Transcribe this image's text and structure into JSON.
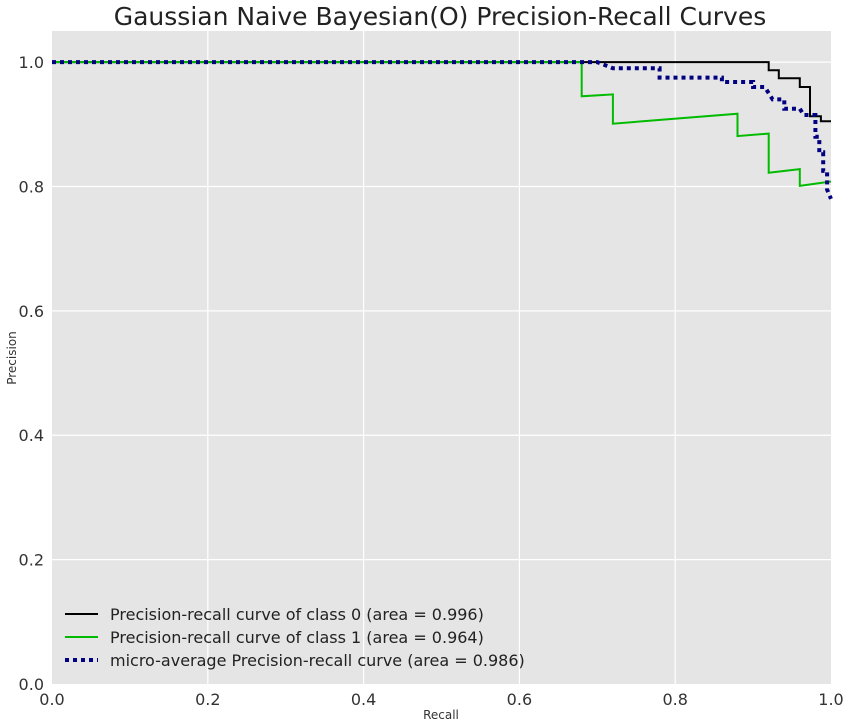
{
  "chart_data": {
    "type": "line",
    "title": "Gaussian Naive Bayesian(O) Precision-Recall Curves",
    "xlabel": "Recall",
    "ylabel": "Precision",
    "xlim": [
      0.0,
      1.0
    ],
    "ylim": [
      0.0,
      1.05
    ],
    "xticks": [
      "0.0",
      "0.2",
      "0.4",
      "0.6",
      "0.8",
      "1.0"
    ],
    "yticks": [
      "0.0",
      "0.2",
      "0.4",
      "0.6",
      "0.8",
      "1.0"
    ],
    "grid": true,
    "legend_position": "lower-left",
    "background_color": "#e5e5e5",
    "grid_color": "#ffffff",
    "series": [
      {
        "name": "Precision-recall curve of class 0 (area = 0.996)",
        "color": "#000000",
        "style": "solid",
        "points": [
          [
            0.0,
            1.0
          ],
          [
            0.92,
            1.0
          ],
          [
            0.92,
            0.987
          ],
          [
            0.933,
            0.987
          ],
          [
            0.933,
            0.974
          ],
          [
            0.96,
            0.974
          ],
          [
            0.96,
            0.96
          ],
          [
            0.973,
            0.96
          ],
          [
            0.973,
            0.913
          ],
          [
            0.987,
            0.913
          ],
          [
            0.987,
            0.905
          ],
          [
            1.0,
            0.905
          ]
        ]
      },
      {
        "name": "Precision-recall curve of class 1 (area = 0.964)",
        "color": "#00bb00",
        "style": "solid",
        "points": [
          [
            0.0,
            1.0
          ],
          [
            0.68,
            1.0
          ],
          [
            0.68,
            0.945
          ],
          [
            0.72,
            0.948
          ],
          [
            0.72,
            0.901
          ],
          [
            0.88,
            0.917
          ],
          [
            0.88,
            0.881
          ],
          [
            0.92,
            0.885
          ],
          [
            0.92,
            0.822
          ],
          [
            0.96,
            0.828
          ],
          [
            0.96,
            0.801
          ],
          [
            1.0,
            0.808
          ]
        ]
      },
      {
        "name": "micro-average Precision-recall curve (area = 0.986)",
        "color": "#000080",
        "style": "dotted",
        "points": [
          [
            0.0,
            1.0
          ],
          [
            0.7,
            1.0
          ],
          [
            0.72,
            0.99
          ],
          [
            0.78,
            0.99
          ],
          [
            0.78,
            0.975
          ],
          [
            0.86,
            0.975
          ],
          [
            0.86,
            0.968
          ],
          [
            0.9,
            0.968
          ],
          [
            0.9,
            0.96
          ],
          [
            0.915,
            0.96
          ],
          [
            0.925,
            0.94
          ],
          [
            0.94,
            0.94
          ],
          [
            0.94,
            0.925
          ],
          [
            0.96,
            0.925
          ],
          [
            0.965,
            0.915
          ],
          [
            0.98,
            0.915
          ],
          [
            0.98,
            0.88
          ],
          [
            0.985,
            0.88
          ],
          [
            0.985,
            0.855
          ],
          [
            0.99,
            0.855
          ],
          [
            0.99,
            0.825
          ],
          [
            0.995,
            0.825
          ],
          [
            0.995,
            0.795
          ],
          [
            1.0,
            0.78
          ]
        ]
      }
    ]
  }
}
